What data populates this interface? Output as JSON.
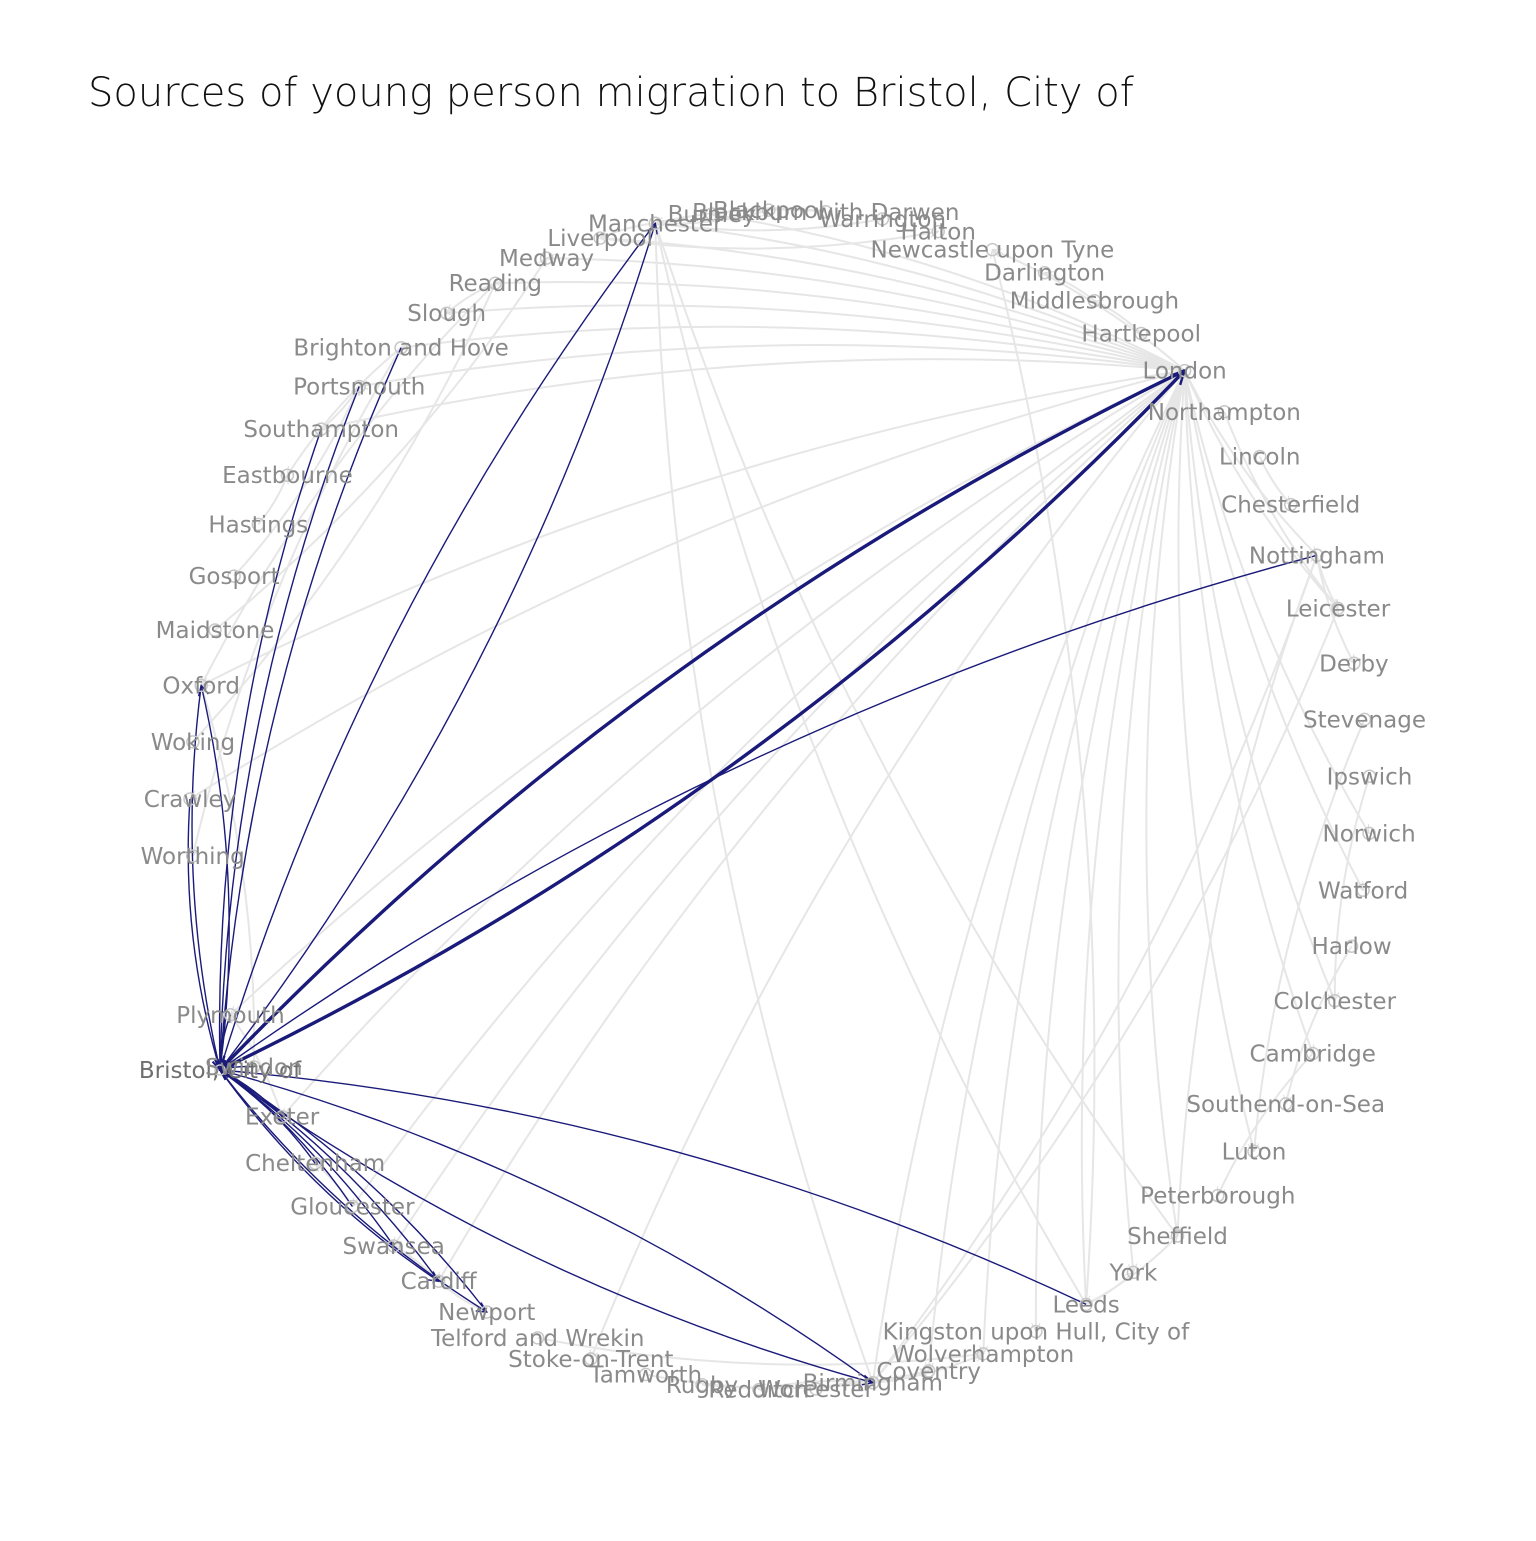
{
  "title": "Sources of young person migration to Bristol, City of",
  "colors": {
    "highlight": "#1a1a7a",
    "background_edge": "#e6e6e6",
    "label": "#8a8a8a"
  },
  "hub": "Bristol, City of",
  "nodes": [
    "Bristol, City of",
    "Worthing",
    "Crawley",
    "Woking",
    "Oxford",
    "Maidstone",
    "Gosport",
    "Hastings",
    "Eastbourne",
    "Southampton",
    "Portsmouth",
    "Brighton and Hove",
    "Slough",
    "Reading",
    "Medway",
    "Liverpool",
    "Manchester",
    "Burnley",
    "Blackpool",
    "Blackburn with Darwen",
    "Warrington",
    "Halton",
    "Newcastle upon Tyne",
    "Darlington",
    "Middlesbrough",
    "Hartlepool",
    "London",
    "Northampton",
    "Lincoln",
    "Chesterfield",
    "Nottingham",
    "Leicester",
    "Derby",
    "Stevenage",
    "Ipswich",
    "Norwich",
    "Watford",
    "Harlow",
    "Colchester",
    "Cambridge",
    "Southend-on-Sea",
    "Luton",
    "Peterborough",
    "Sheffield",
    "York",
    "Leeds",
    "Kingston upon Hull, City of",
    "Wolverhampton",
    "Coventry",
    "Birmingham",
    "Worcester",
    "Redditch",
    "Rugby",
    "Tamworth",
    "Stoke-on-Trent",
    "Telford and Wrekin",
    "Newport",
    "Cardiff",
    "Swansea",
    "Gloucester",
    "Cheltenham",
    "Exeter",
    "Swindon",
    "Plymouth"
  ],
  "highlighted_flows": [
    {
      "from": "London",
      "to": "Bristol, City of",
      "weight": 3
    },
    {
      "from": "Bristol, City of",
      "to": "London",
      "weight": 3
    },
    {
      "from": "Nottingham",
      "to": "Bristol, City of",
      "weight": 1
    },
    {
      "from": "Leeds",
      "to": "Bristol, City of",
      "weight": 1
    },
    {
      "from": "Birmingham",
      "to": "Bristol, City of",
      "weight": 1
    },
    {
      "from": "Bristol, City of",
      "to": "Birmingham",
      "weight": 1
    },
    {
      "from": "Bristol, City of",
      "to": "Newport",
      "weight": 1
    },
    {
      "from": "Bristol, City of",
      "to": "Cardiff",
      "weight": 1
    },
    {
      "from": "Newport",
      "to": "Bristol, City of",
      "weight": 1
    },
    {
      "from": "Cardiff",
      "to": "Bristol, City of",
      "weight": 1
    },
    {
      "from": "Swansea",
      "to": "Bristol, City of",
      "weight": 1
    },
    {
      "from": "Gloucester",
      "to": "Bristol, City of",
      "weight": 1
    },
    {
      "from": "Cheltenham",
      "to": "Bristol, City of",
      "weight": 1
    },
    {
      "from": "Exeter",
      "to": "Bristol, City of",
      "weight": 1
    },
    {
      "from": "Swindon",
      "to": "Bristol, City of",
      "weight": 1
    },
    {
      "from": "Plymouth",
      "to": "Bristol, City of",
      "weight": 1
    },
    {
      "from": "Bristol, City of",
      "to": "Oxford",
      "weight": 1
    },
    {
      "from": "Oxford",
      "to": "Bristol, City of",
      "weight": 1
    },
    {
      "from": "Bristol, City of",
      "to": "Manchester",
      "weight": 1
    },
    {
      "from": "Manchester",
      "to": "Bristol, City of",
      "weight": 1
    },
    {
      "from": "Portsmouth",
      "to": "Bristol, City of",
      "weight": 1
    },
    {
      "from": "Southampton",
      "to": "Bristol, City of",
      "weight": 1
    },
    {
      "from": "Brighton and Hove",
      "to": "Bristol, City of",
      "weight": 1
    },
    {
      "from": "Crawley",
      "to": "Bristol, City of",
      "weight": 1
    }
  ],
  "background_flows": [
    [
      "London",
      "Birmingham"
    ],
    [
      "London",
      "Manchester"
    ],
    [
      "London",
      "Leeds"
    ],
    [
      "London",
      "Sheffield"
    ],
    [
      "London",
      "Liverpool"
    ],
    [
      "London",
      "Cardiff"
    ],
    [
      "London",
      "Nottingham"
    ],
    [
      "London",
      "Brighton and Hove"
    ],
    [
      "London",
      "Oxford"
    ],
    [
      "London",
      "Cambridge"
    ],
    [
      "London",
      "Coventry"
    ],
    [
      "London",
      "Leicester"
    ],
    [
      "London",
      "Reading"
    ],
    [
      "London",
      "Southampton"
    ],
    [
      "London",
      "Portsmouth"
    ],
    [
      "London",
      "Norwich"
    ],
    [
      "London",
      "Exeter"
    ],
    [
      "London",
      "Wolverhampton"
    ],
    [
      "London",
      "Kingston upon Hull, City of"
    ],
    [
      "London",
      "York"
    ],
    [
      "London",
      "Newcastle upon Tyne"
    ],
    [
      "London",
      "Luton"
    ],
    [
      "London",
      "Colchester"
    ],
    [
      "London",
      "Swansea"
    ],
    [
      "London",
      "Plymouth"
    ],
    [
      "London",
      "Stoke-on-Trent"
    ],
    [
      "London",
      "Gloucester"
    ],
    [
      "London",
      "Medway"
    ],
    [
      "London",
      "Watford"
    ],
    [
      "London",
      "Slough"
    ],
    [
      "London",
      "Crawley"
    ],
    [
      "London",
      "Burnley"
    ],
    [
      "Manchester",
      "Leeds"
    ],
    [
      "Manchester",
      "Birmingham"
    ],
    [
      "Manchester",
      "Sheffield"
    ],
    [
      "Manchester",
      "Liverpool"
    ],
    [
      "Manchester",
      "Blackpool"
    ],
    [
      "Manchester",
      "Warrington"
    ],
    [
      "Birmingham",
      "Coventry"
    ],
    [
      "Birmingham",
      "Wolverhampton"
    ],
    [
      "Birmingham",
      "Redditch"
    ],
    [
      "Birmingham",
      "Worcester"
    ],
    [
      "Birmingham",
      "Nottingham"
    ],
    [
      "Birmingham",
      "Leicester"
    ],
    [
      "Leeds",
      "York"
    ],
    [
      "Leeds",
      "Sheffield"
    ],
    [
      "Leeds",
      "Newcastle upon Tyne"
    ],
    [
      "Nottingham",
      "Derby"
    ],
    [
      "Nottingham",
      "Leicester"
    ],
    [
      "Nottingham",
      "Sheffield"
    ],
    [
      "Cardiff",
      "Swansea"
    ],
    [
      "Cardiff",
      "Newport"
    ],
    [
      "Cambridge",
      "Peterborough"
    ],
    [
      "Reading",
      "Oxford"
    ],
    [
      "Reading",
      "Slough"
    ],
    [
      "Southampton",
      "Portsmouth"
    ],
    [
      "Brighton and Hove",
      "Worthing"
    ],
    [
      "Brighton and Hove",
      "Eastbourne"
    ],
    [
      "Liverpool",
      "Halton"
    ],
    [
      "Middlesbrough",
      "Darlington"
    ],
    [
      "Hartlepool",
      "Middlesbrough"
    ],
    [
      "Lincoln",
      "Chesterfield"
    ],
    [
      "Northampton",
      "Leicester"
    ],
    [
      "Stevenage",
      "Luton"
    ],
    [
      "Ipswich",
      "Colchester"
    ],
    [
      "Harlow",
      "Southend-on-Sea"
    ],
    [
      "Tamworth",
      "Birmingham"
    ],
    [
      "Telford and Wrekin",
      "Wolverhampton"
    ],
    [
      "Exeter",
      "Plymouth"
    ],
    [
      "Gloucester",
      "Cheltenham"
    ],
    [
      "Swindon",
      "Oxford"
    ],
    [
      "Woking",
      "Reading"
    ],
    [
      "Maidstone",
      "Medway"
    ],
    [
      "Gosport",
      "Portsmouth"
    ],
    [
      "Hastings",
      "Eastbourne"
    ],
    [
      "Rugby",
      "Coventry"
    ],
    [
      "Blackburn with Darwen",
      "Burnley"
    ],
    [
      "Blackburn with Darwen",
      "Manchester"
    ]
  ]
}
